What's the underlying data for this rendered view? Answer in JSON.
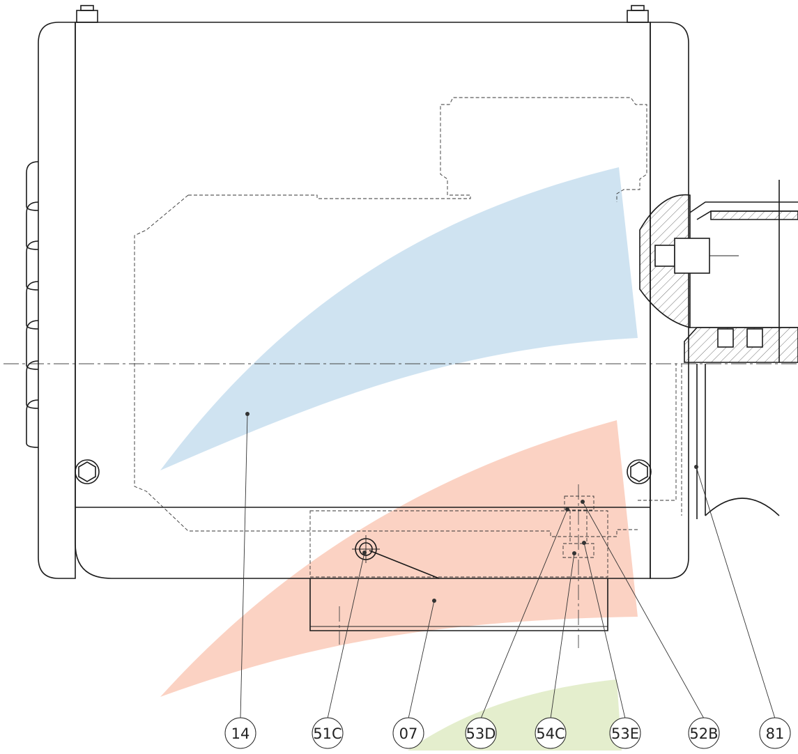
{
  "watermark": {
    "colors": {
      "blue": "#cfe3f1",
      "red": "#fbd2c3",
      "green": "#e4eecd"
    }
  },
  "callouts": [
    {
      "id": "14",
      "label": "14"
    },
    {
      "id": "51C",
      "label": "51C"
    },
    {
      "id": "07",
      "label": "07"
    },
    {
      "id": "53D",
      "label": "53D"
    },
    {
      "id": "54C",
      "label": "54C"
    },
    {
      "id": "53E",
      "label": "53E"
    },
    {
      "id": "52B",
      "label": "52B"
    },
    {
      "id": "81",
      "label": "81"
    }
  ]
}
